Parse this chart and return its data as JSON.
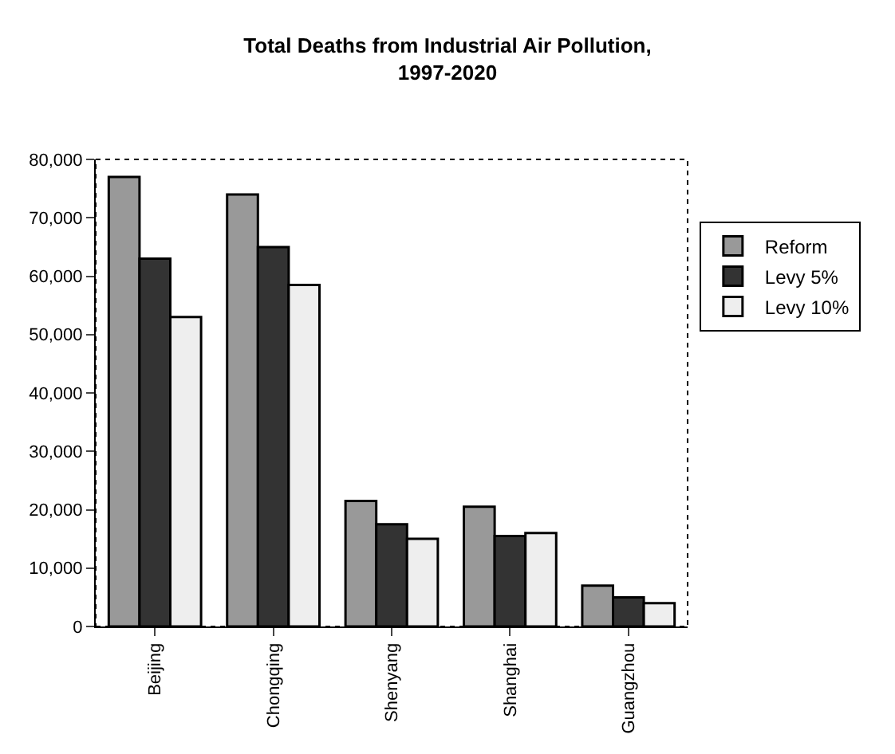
{
  "chart_data": {
    "type": "bar",
    "title": "Total Deaths from Industrial Air Pollution,\n1997-2020",
    "categories": [
      "Beijing",
      "Chongqing",
      "Shenyang",
      "Shanghai",
      "Guangzhou"
    ],
    "series": [
      {
        "name": "Reform",
        "color": "#999999",
        "values": [
          77000,
          74000,
          21500,
          20500,
          7000
        ]
      },
      {
        "name": "Levy 5%",
        "color": "#333333",
        "values": [
          63000,
          65000,
          17500,
          15500,
          5000
        ]
      },
      {
        "name": "Levy 10%",
        "color": "#eeeeee",
        "values": [
          53000,
          58500,
          15000,
          16000,
          4000
        ]
      }
    ],
    "ylim": [
      0,
      80000
    ],
    "yticks": [
      {
        "value": 0,
        "label": "0"
      },
      {
        "value": 10000,
        "label": "10,000"
      },
      {
        "value": 20000,
        "label": "20,000"
      },
      {
        "value": 30000,
        "label": "30,000"
      },
      {
        "value": 40000,
        "label": "40,000"
      },
      {
        "value": 50000,
        "label": "50,000"
      },
      {
        "value": 60000,
        "label": "60,000"
      },
      {
        "value": 70000,
        "label": "70,000"
      },
      {
        "value": 80000,
        "label": "80,000"
      }
    ],
    "legend": "right"
  }
}
